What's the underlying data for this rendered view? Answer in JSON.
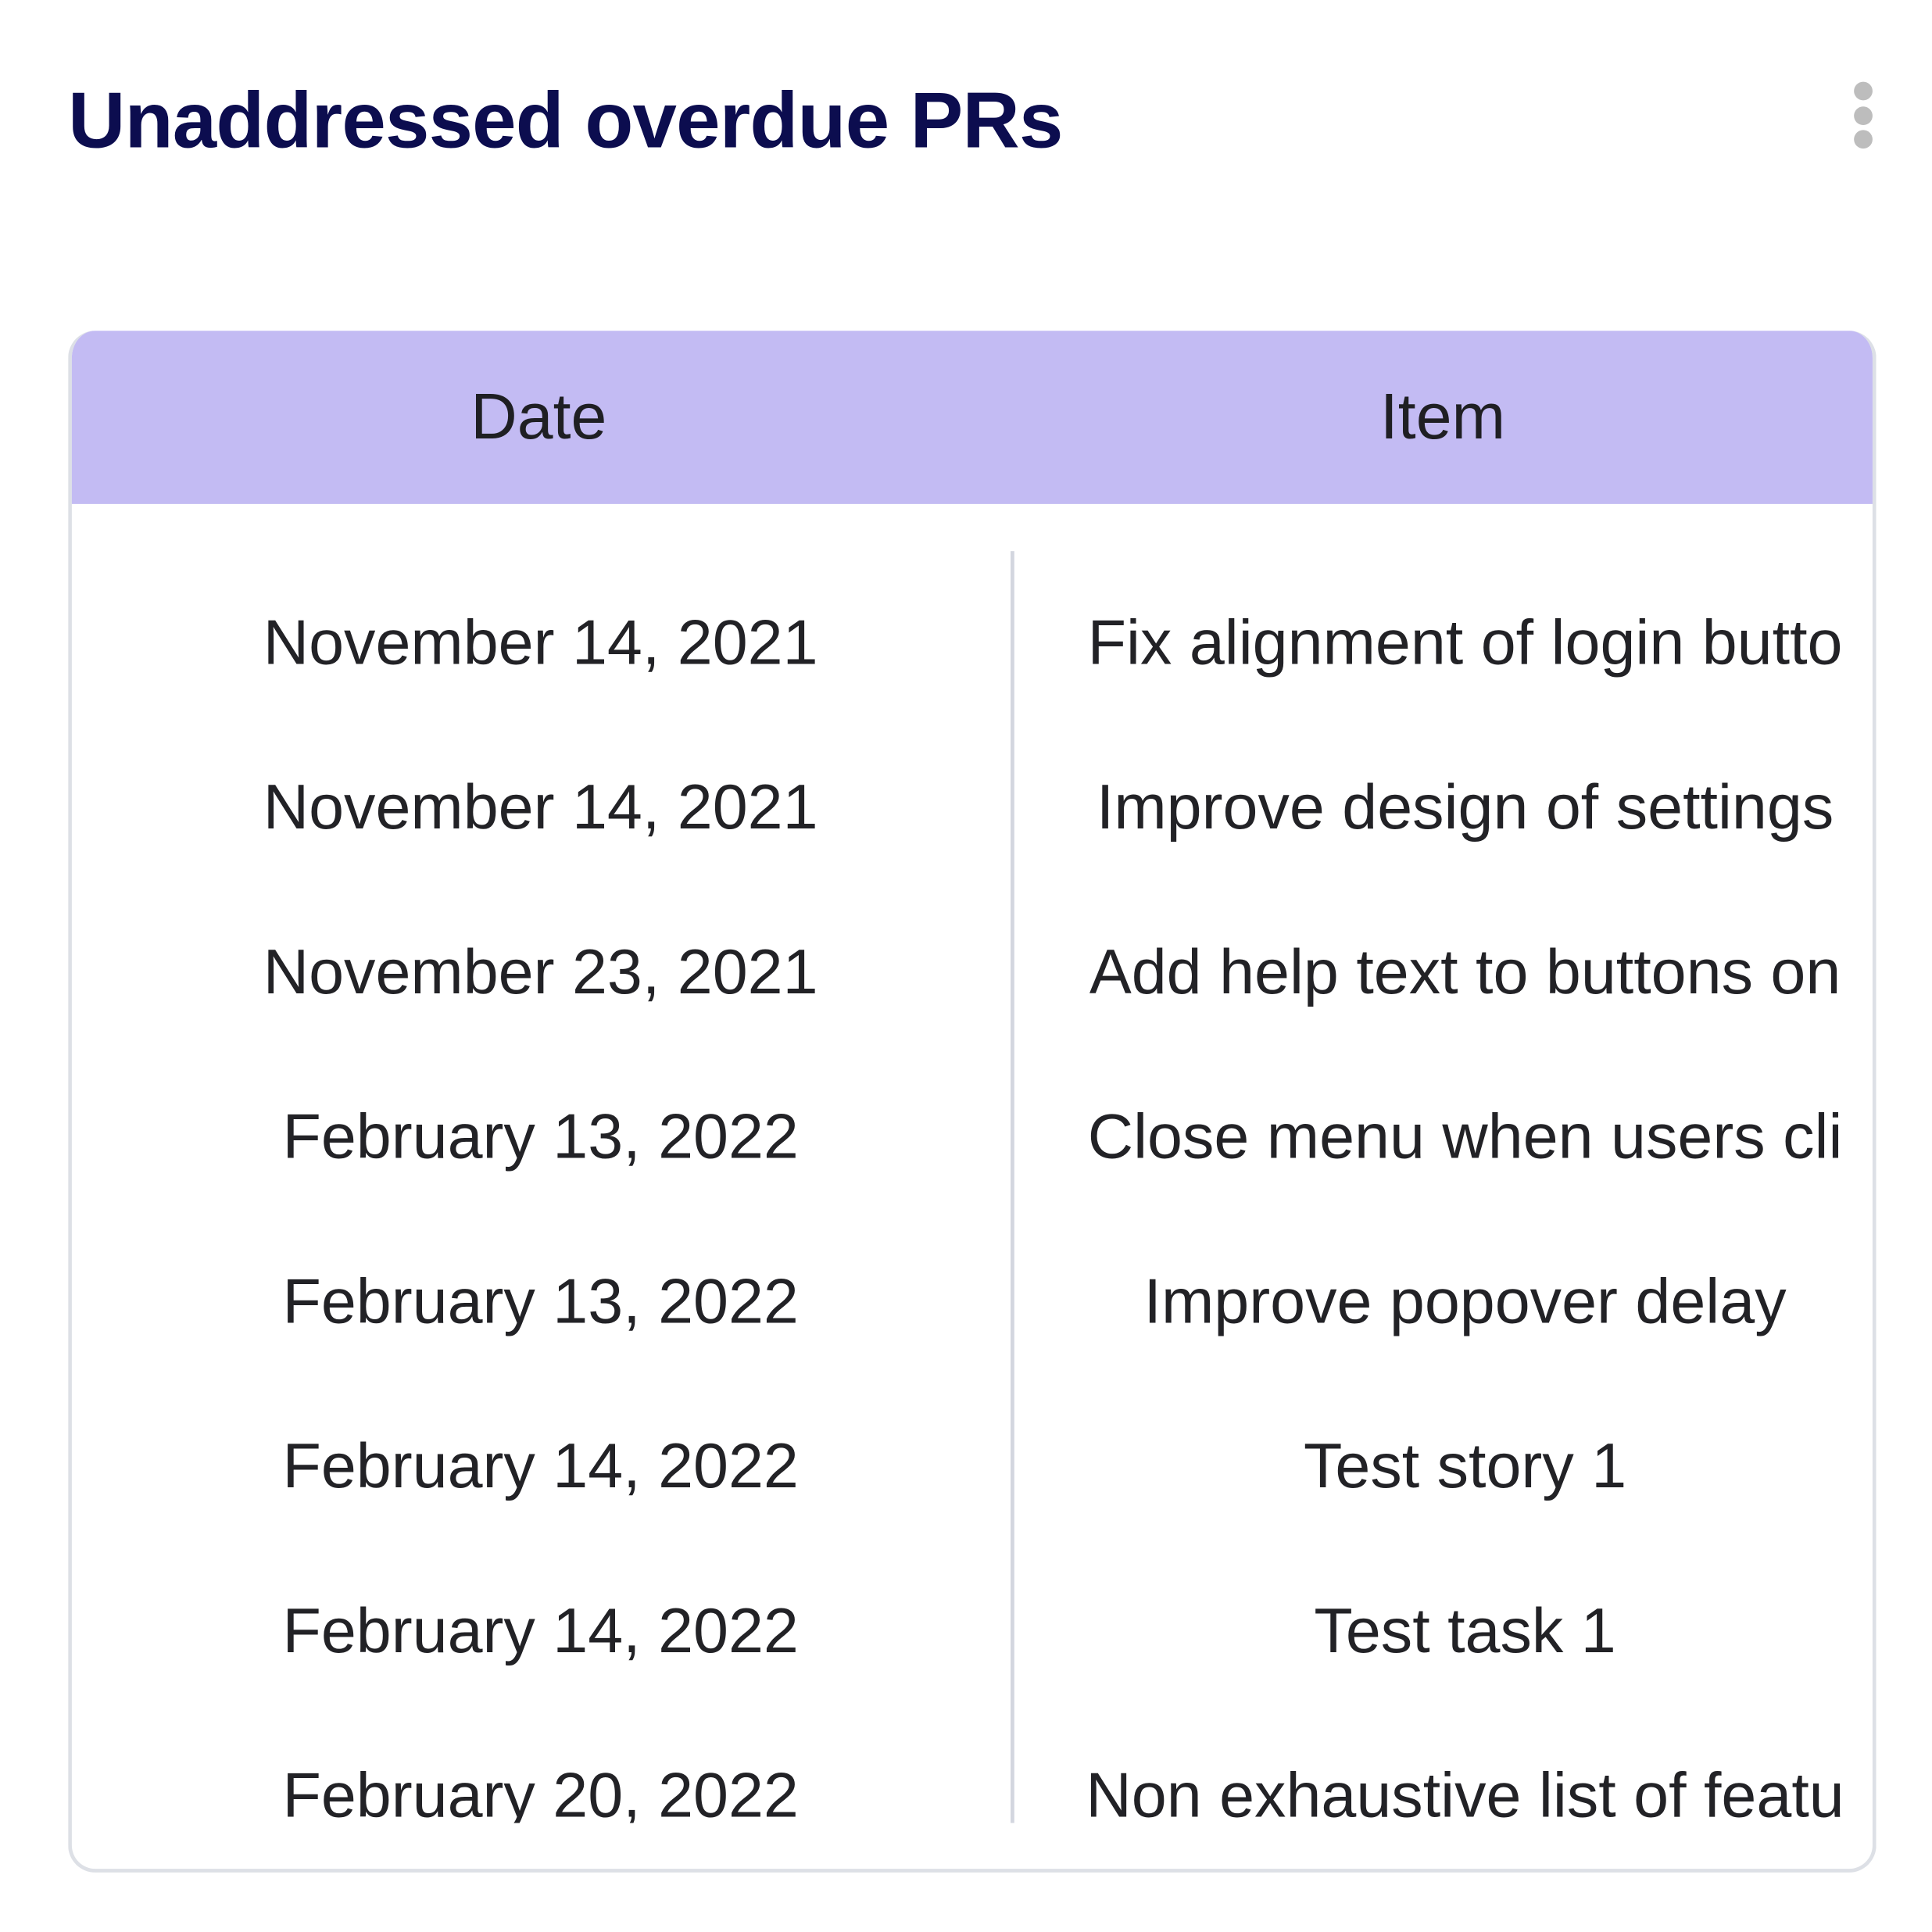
{
  "widget": {
    "title": "Unaddressed overdue PRs",
    "menu_icon": "kebab-vertical-icon"
  },
  "colors": {
    "title": "#0c0d4f",
    "header_bg": "#c3bbf3",
    "border": "#dde0e6"
  },
  "table": {
    "columns": [
      "Date",
      "Item"
    ],
    "rows": [
      {
        "date": "November 14, 2021",
        "item": "Fix alignment of login butto"
      },
      {
        "date": "November 14, 2021",
        "item": "Improve design of settings"
      },
      {
        "date": "November 23, 2021",
        "item": "Add help text to buttons on"
      },
      {
        "date": "February 13, 2022",
        "item": "Close menu when users cli"
      },
      {
        "date": "February 13, 2022",
        "item": "Improve popover delay"
      },
      {
        "date": "February 14, 2022",
        "item": "Test story 1"
      },
      {
        "date": "February 14, 2022",
        "item": "Test task 1"
      },
      {
        "date": "February 20, 2022",
        "item": "Non exhaustive list of featu"
      }
    ]
  }
}
